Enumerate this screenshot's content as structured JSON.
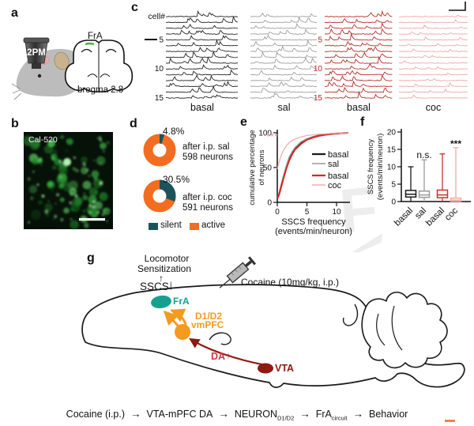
{
  "figure_labels": {
    "a": "a",
    "b": "b",
    "c": "c",
    "d": "d",
    "e": "e",
    "f": "f",
    "g": "g"
  },
  "panel_a": {
    "objective": "2PM",
    "region": "FrA",
    "coords": "bregma 2.8"
  },
  "panel_b": {
    "dye": "Cal-520"
  },
  "panel_g": {
    "locomotor1": "Locomotor",
    "locomotor2": "Sensitization",
    "up_arrow": "↑",
    "sscs": "SSCS",
    "down_arrow": "↓",
    "fra": "FrA",
    "d1": "D1/D2",
    "vmpfc": "vmPFC",
    "cocaine": "Cocaine (10mg/kg, i.p.)",
    "da": "DA",
    "da_up": "↑",
    "vta": "VTA",
    "colors": {
      "fra_fill": "#18a08e",
      "fra_text": "#18a08e",
      "vmpfc": "#f49a1f",
      "vta": "#8e1a12",
      "da_text": "#c43c46",
      "arrow_orange": "#f49a1f",
      "arrow_red": "#8e1a12"
    }
  },
  "flow": {
    "arrow": "→",
    "items": [
      {
        "text": "Cocaine (i.p.)",
        "sub": ""
      },
      {
        "text": "VTA-mPFC DA",
        "sub": ""
      },
      {
        "text": "NEURON",
        "sub": "D1/D2"
      },
      {
        "text": "FrA",
        "sub": "circuit"
      },
      {
        "text": "Behavior",
        "sub": ""
      }
    ]
  },
  "watermark": {
    "char": "F",
    "color": "#ededed"
  },
  "chart_data": [
    {
      "panel": "c",
      "type": "line",
      "subtype": "calcium-trace-raster",
      "n_cells": 15,
      "row_axis_label": "cell#",
      "row_ticks": [
        "5",
        "10",
        "15"
      ],
      "groups": [
        {
          "label": "basal",
          "color": "#1a1a1a",
          "mean_spikes": 5,
          "amp": 6.5
        },
        {
          "label": "sal",
          "color": "#9a9a9a",
          "mean_spikes": 4,
          "amp": 6
        },
        {
          "label": "basal",
          "color": "#b22420",
          "mean_spikes": 5,
          "amp": 6.5
        },
        {
          "label": "coc",
          "color": "#efa3a3",
          "mean_spikes": 2,
          "amp": 3.5
        }
      ]
    },
    {
      "panel": "d",
      "type": "pie",
      "donuts": [
        {
          "pct_silent": 4.8,
          "pct_label": "4.8%",
          "caption1": "after i.p. sal",
          "caption2": "598 neurons"
        },
        {
          "pct_silent": 30.5,
          "pct_label": "30.5%",
          "caption1": "after i.p. coc",
          "caption2": "591 neurons"
        }
      ],
      "legend": [
        {
          "label": "silent",
          "color": "#1b535c"
        },
        {
          "label": "active",
          "color": "#f26d21"
        }
      ]
    },
    {
      "panel": "e",
      "type": "line",
      "ylabel": [
        "cumulative percentage",
        "of neurons"
      ],
      "xlabel": [
        "SSCS frequency",
        "(events/min/neuron)"
      ],
      "xlim": [
        0,
        12
      ],
      "ylim": [
        0,
        100
      ],
      "xticks": [
        "0",
        "5",
        "10"
      ],
      "yticks": [
        "0",
        "50",
        "100"
      ],
      "significance": {
        "text": "***",
        "color": "#eda2a6"
      },
      "series": [
        {
          "name": "basal",
          "color": "#1a1a1a",
          "width": 2,
          "x": [
            0,
            0.3,
            0.6,
            1,
            1.5,
            2,
            2.5,
            3,
            4,
            5,
            6,
            7,
            8,
            9,
            10,
            11,
            12
          ],
          "y": [
            5,
            12,
            22,
            35,
            50,
            63,
            71,
            78,
            86,
            91,
            94,
            96,
            97.5,
            98.5,
            99,
            99.5,
            100
          ]
        },
        {
          "name": "sal",
          "color": "#9a9a9a",
          "width": 1.3,
          "x": [
            0,
            0.3,
            0.6,
            1,
            1.5,
            2,
            2.5,
            3,
            4,
            5,
            6,
            7,
            8,
            9,
            10,
            11,
            12
          ],
          "y": [
            6,
            14,
            24,
            37,
            52,
            65,
            73,
            79,
            87,
            91.5,
            94,
            96,
            97.5,
            98.5,
            99,
            99.5,
            100
          ]
        },
        {
          "name": "basal",
          "color": "#cf2a27",
          "width": 2,
          "x": [
            0,
            0.3,
            0.6,
            1,
            1.5,
            2,
            2.5,
            3,
            4,
            5,
            6,
            7,
            8,
            9,
            10,
            11,
            12
          ],
          "y": [
            5,
            11,
            20,
            33,
            48,
            60,
            69,
            76,
            84,
            90,
            93,
            95.5,
            97,
            98,
            99,
            99.5,
            100
          ]
        },
        {
          "name": "coc",
          "color": "#f2aeb1",
          "width": 1.3,
          "x": [
            0,
            0.3,
            0.6,
            1,
            1.5,
            2,
            2.5,
            3,
            4,
            5,
            6,
            7,
            8,
            9,
            10,
            11,
            12
          ],
          "y": [
            48,
            58,
            66,
            74,
            81,
            86,
            89,
            91,
            94,
            96,
            97,
            98,
            98.5,
            99,
            99.5,
            99.8,
            100
          ]
        }
      ]
    },
    {
      "panel": "f",
      "type": "box",
      "ylabel": [
        "SSCS frequency",
        "(events/min/neuron)"
      ],
      "ylim": [
        0,
        20
      ],
      "yticks": [
        "0",
        "5",
        "10",
        "15",
        "20"
      ],
      "annotations": [
        {
          "text": "n.s.",
          "x_index": 1
        },
        {
          "text": "***",
          "x_index": 3
        }
      ],
      "boxes": [
        {
          "label": "basal",
          "color": "#1a1a1a",
          "low": 0,
          "q1": 1.3,
          "median": 2.1,
          "q3": 3.2,
          "high": 10
        },
        {
          "label": "sal",
          "color": "#9a9a9a",
          "low": 0,
          "q1": 1.2,
          "median": 1.9,
          "q3": 3.0,
          "high": 12
        },
        {
          "label": "basal",
          "color": "#c5342f",
          "low": 0,
          "q1": 1.1,
          "median": 1.9,
          "q3": 3.3,
          "high": 13.7
        },
        {
          "label": "coc",
          "color": "#f4a9a4",
          "low": 0,
          "q1": 0.1,
          "median": 0.4,
          "q3": 1.0,
          "high": 15.5
        }
      ]
    }
  ]
}
